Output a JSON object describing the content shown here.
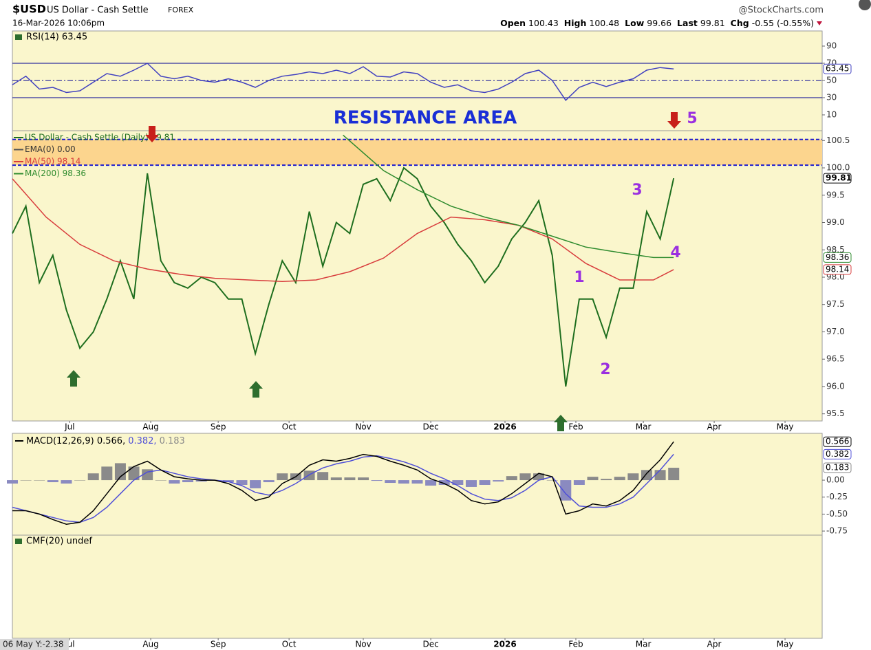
{
  "header": {
    "symbol": "$USD",
    "name": "US Dollar - Cash Settle",
    "exchange": "FOREX",
    "source": "@StockCharts.com",
    "date": "16-Mar-2026 10:06pm",
    "quote": [
      {
        "label": "Open",
        "value": 100.43
      },
      {
        "label": "High",
        "value": 100.48
      },
      {
        "label": "Low",
        "value": 99.66
      },
      {
        "label": "Last",
        "value": 99.81
      },
      {
        "label": "Chg",
        "value": "-0.55 (-0.55%)"
      }
    ]
  },
  "footer": "06 May Y:-2.38",
  "chart_data": [
    {
      "type": "line",
      "legend": "RSI(14) 63.45",
      "x": [
        0,
        4,
        8,
        12,
        16,
        20,
        24,
        28,
        32,
        36,
        40,
        44,
        48,
        52,
        56,
        60,
        64,
        68,
        72,
        76,
        80,
        84,
        88,
        92,
        96,
        100,
        104,
        108,
        112,
        116,
        120,
        124,
        128,
        132,
        136,
        140,
        144,
        148,
        152,
        156,
        160,
        164,
        168,
        172,
        176,
        180,
        184,
        188,
        192,
        196
      ],
      "series": [
        {
          "color": "#4040c0",
          "badge": true,
          "values": [
            45,
            55,
            40,
            42,
            36,
            38,
            48,
            58,
            55,
            62,
            70,
            55,
            52,
            55,
            50,
            48,
            52,
            48,
            42,
            50,
            55,
            57,
            60,
            58,
            62,
            58,
            66,
            55,
            54,
            60,
            58,
            48,
            42,
            45,
            38,
            36,
            40,
            48,
            58,
            62,
            50,
            27,
            42,
            48,
            43,
            48,
            52,
            62,
            65,
            63.45
          ]
        }
      ],
      "ylim": [
        -8.4,
        107.6
      ],
      "yticks": [
        90,
        70,
        50,
        30,
        10
      ],
      "reference_lines": [
        {
          "value": 70,
          "style": "solid"
        },
        {
          "value": 50,
          "style": "dashdot"
        },
        {
          "value": 30,
          "style": "solid"
        }
      ],
      "reference_color": "#3030a0"
    },
    {
      "type": "line",
      "ema_legend": "EMA(0) 0.00",
      "x": [
        0,
        4,
        8,
        12,
        16,
        20,
        24,
        28,
        32,
        36,
        40,
        44,
        48,
        52,
        56,
        60,
        64,
        68,
        72,
        76,
        80,
        84,
        88,
        92,
        96,
        100,
        104,
        108,
        112,
        116,
        120,
        124,
        128,
        132,
        136,
        140,
        144,
        148,
        152,
        156,
        160,
        164,
        168,
        172,
        176,
        180,
        184,
        188,
        192,
        196
      ],
      "series": [
        {
          "name": "US Dollar - Cash Settle (Daily) 99.81",
          "color": "#1e6e1e",
          "badge": true,
          "values": [
            98.8,
            99.3,
            97.9,
            98.4,
            97.4,
            96.7,
            97.0,
            97.6,
            98.3,
            97.6,
            99.9,
            98.3,
            97.9,
            97.8,
            98.0,
            97.9,
            97.6,
            97.6,
            96.6,
            97.5,
            98.3,
            97.9,
            99.2,
            98.2,
            99.0,
            98.8,
            99.7,
            99.8,
            99.4,
            100.0,
            99.8,
            99.3,
            99.0,
            98.6,
            98.3,
            97.9,
            98.2,
            98.7,
            99.0,
            99.4,
            98.4,
            96.0,
            97.6,
            97.6,
            96.9,
            97.8,
            97.8,
            99.2,
            98.7,
            99.81
          ]
        },
        {
          "name": "MA(50) 98.14",
          "color": "#d83c3c",
          "badge": true,
          "x": [
            0,
            10,
            20,
            30,
            40,
            50,
            60,
            70,
            80,
            90,
            100,
            110,
            120,
            130,
            140,
            150,
            160,
            170,
            180,
            190,
            196
          ],
          "values": [
            99.8,
            99.1,
            98.6,
            98.3,
            98.15,
            98.05,
            97.98,
            97.95,
            97.92,
            97.95,
            98.1,
            98.35,
            98.8,
            99.1,
            99.05,
            98.95,
            98.7,
            98.25,
            97.95,
            97.95,
            98.14
          ]
        },
        {
          "name": "MA(200) 98.36",
          "color": "#2e8b2e",
          "badge": true,
          "x": [
            98,
            110,
            120,
            130,
            140,
            150,
            160,
            170,
            180,
            190,
            196
          ],
          "values": [
            100.6,
            99.95,
            99.6,
            99.3,
            99.1,
            98.95,
            98.75,
            98.55,
            98.45,
            98.36,
            98.36
          ]
        }
      ],
      "resistance": {
        "low": 100.05,
        "high": 100.52,
        "color": "#fcd58e",
        "line_color": "#1a1ad0"
      },
      "annotations": [
        {
          "text": "RESISTANCE AREA",
          "color": "#1a2fd6"
        },
        {
          "text": "1",
          "color": "#9a2fe0"
        },
        {
          "text": "2",
          "color": "#9a2fe0"
        },
        {
          "text": "3",
          "color": "#9a2fe0"
        },
        {
          "text": "4",
          "color": "#9a2fe0"
        },
        {
          "text": "5",
          "color": "#9a2fe0"
        }
      ],
      "ylim": [
        95.37,
        100.68
      ],
      "yticks": [
        95.5,
        {
          "value": 96,
          "label": "96.0"
        },
        96.5,
        {
          "value": 97,
          "label": "97.0"
        },
        97.5,
        {
          "value": 98,
          "label": "98.0"
        },
        98.5,
        {
          "value": 99,
          "label": "99.0"
        },
        99.5,
        {
          "value": 100,
          "label": "100.0"
        },
        100.5
      ],
      "xlim": [
        0,
        240
      ],
      "xticks": [
        {
          "value": 17,
          "label": "Jul"
        },
        {
          "value": 41,
          "label": "Aug"
        },
        {
          "value": 61,
          "label": "Sep"
        },
        {
          "value": 82,
          "label": "Oct"
        },
        {
          "value": 104,
          "label": "Nov"
        },
        {
          "value": 124,
          "label": "Dec"
        },
        {
          "value": 146,
          "label": "2026"
        },
        {
          "value": 167,
          "label": "Feb"
        },
        {
          "value": 187,
          "label": "Mar"
        },
        {
          "value": 208,
          "label": "Apr"
        },
        {
          "value": 229,
          "label": "May"
        }
      ]
    },
    {
      "type": "line",
      "legend": [
        "MACD(12,26,9) 0.566,",
        "0.382,",
        "0.183"
      ],
      "x": [
        0,
        4,
        8,
        12,
        16,
        20,
        24,
        28,
        32,
        36,
        40,
        44,
        48,
        52,
        56,
        60,
        64,
        68,
        72,
        76,
        80,
        84,
        88,
        92,
        96,
        100,
        104,
        108,
        112,
        116,
        120,
        124,
        128,
        132,
        136,
        140,
        144,
        148,
        152,
        156,
        160,
        164,
        168,
        172,
        176,
        180,
        184,
        188,
        192,
        196
      ],
      "series": [
        {
          "type": "bar",
          "color": "#8a8a8a",
          "neg_color": "#8a8ac0",
          "badge": true,
          "values": [
            -0.05,
            0,
            0,
            -0.03,
            -0.05,
            0,
            0.1,
            0.2,
            0.25,
            0.2,
            0.16,
            0,
            -0.05,
            -0.03,
            -0.02,
            0,
            -0.03,
            -0.07,
            -0.12,
            -0.03,
            0.1,
            0.1,
            0.14,
            0.12,
            0.04,
            0.04,
            0.04,
            -0.01,
            -0.04,
            -0.05,
            -0.05,
            -0.08,
            -0.07,
            -0.07,
            -0.1,
            -0.07,
            -0.02,
            0.06,
            0.1,
            0.1,
            0,
            -0.3,
            -0.07,
            0.05,
            0.02,
            0.05,
            0.1,
            0.15,
            0.15,
            0.183
          ]
        },
        {
          "color": "#5050d8",
          "badge": true,
          "values": [
            -0.4,
            -0.45,
            -0.5,
            -0.55,
            -0.6,
            -0.62,
            -0.55,
            -0.4,
            -0.2,
            0,
            0.12,
            0.15,
            0.1,
            0.05,
            0.02,
            0,
            -0.02,
            -0.08,
            -0.18,
            -0.22,
            -0.15,
            -0.05,
            0.08,
            0.18,
            0.24,
            0.28,
            0.34,
            0.36,
            0.32,
            0.27,
            0.2,
            0.1,
            0.02,
            -0.08,
            -0.2,
            -0.28,
            -0.3,
            -0.26,
            -0.15,
            0,
            0.05,
            -0.2,
            -0.38,
            -0.4,
            -0.4,
            -0.35,
            -0.25,
            -0.05,
            0.15,
            0.382
          ]
        },
        {
          "color": "#000000",
          "badge": true,
          "values": [
            -0.45,
            -0.45,
            -0.5,
            -0.58,
            -0.65,
            -0.62,
            -0.45,
            -0.2,
            0.05,
            0.2,
            0.28,
            0.15,
            0.05,
            0.02,
            0,
            0,
            -0.05,
            -0.15,
            -0.3,
            -0.25,
            -0.05,
            0.05,
            0.22,
            0.3,
            0.28,
            0.32,
            0.38,
            0.35,
            0.28,
            0.22,
            0.15,
            0.02,
            -0.05,
            -0.15,
            -0.3,
            -0.35,
            -0.32,
            -0.2,
            -0.05,
            0.1,
            0.05,
            -0.5,
            -0.45,
            -0.35,
            -0.38,
            -0.3,
            -0.15,
            0.1,
            0.3,
            0.566
          ]
        }
      ],
      "ylim": [
        -0.81,
        0.69
      ],
      "yticks": [
        {
          "value": 0,
          "label": "0.00"
        },
        -0.25,
        {
          "value": -0.5,
          "label": "-0.50"
        },
        -0.75
      ]
    },
    {
      "type": "panel",
      "legend": "CMF(20) undef"
    }
  ]
}
